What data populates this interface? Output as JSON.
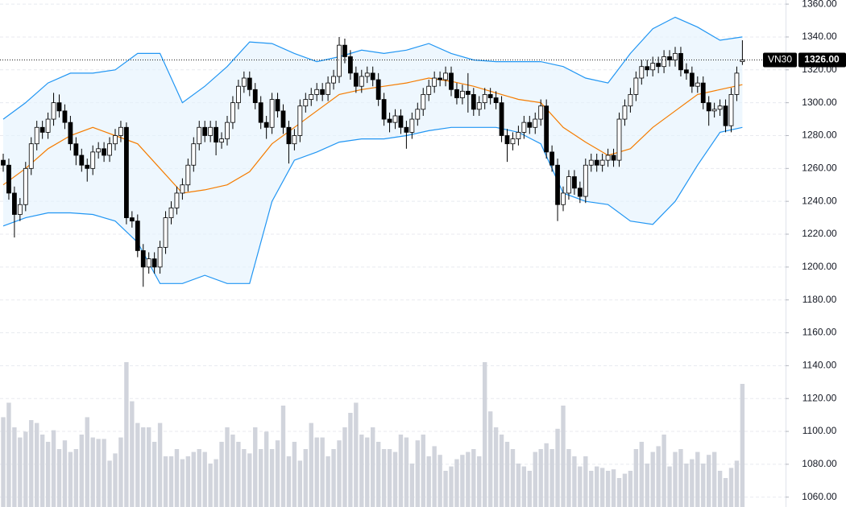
{
  "chart_data": {
    "type": "candlestick",
    "symbol": "VN30",
    "last_price": {
      "value": 1326,
      "label": "1326.00"
    },
    "open": [
      1265,
      1262,
      1245,
      1232,
      1238,
      1260,
      1275,
      1285,
      1282,
      1290,
      1300,
      1295,
      1288,
      1275,
      1268,
      1262,
      1260,
      1270,
      1272,
      1268,
      1275,
      1280,
      1285,
      1230,
      1228,
      1210,
      1200,
      1205,
      1200,
      1212,
      1230,
      1236,
      1245,
      1250,
      1262,
      1275,
      1285,
      1280,
      1285,
      1276,
      1278,
      1288,
      1300,
      1310,
      1315,
      1308,
      1300,
      1288,
      1285,
      1302,
      1295,
      1285,
      1275,
      1280,
      1298,
      1302,
      1305,
      1308,
      1305,
      1312,
      1316,
      1335,
      1328,
      1318,
      1310,
      1316,
      1318,
      1314,
      1302,
      1290,
      1288,
      1292,
      1285,
      1282,
      1290,
      1296,
      1305,
      1310,
      1315,
      1314,
      1318,
      1308,
      1303,
      1307,
      1305,
      1296,
      1300,
      1305,
      1303,
      1300,
      1280,
      1275,
      1278,
      1282,
      1288,
      1285,
      1290,
      1298,
      1270,
      1262,
      1238,
      1245,
      1255,
      1248,
      1243,
      1262,
      1265,
      1262,
      1265,
      1268,
      1265,
      1290,
      1298,
      1305,
      1315,
      1322,
      1320,
      1324,
      1322,
      1328,
      1326,
      1330,
      1320,
      1318,
      1310,
      1312,
      1300,
      1295,
      1296,
      1298,
      1286,
      1305,
      1325
    ],
    "high": [
      1269,
      1266,
      1249,
      1242,
      1264,
      1279,
      1289,
      1289,
      1294,
      1306,
      1305,
      1299,
      1292,
      1279,
      1272,
      1266,
      1274,
      1276,
      1276,
      1279,
      1284,
      1289,
      1288,
      1234,
      1232,
      1214,
      1209,
      1209,
      1216,
      1234,
      1240,
      1249,
      1254,
      1266,
      1279,
      1289,
      1289,
      1289,
      1289,
      1282,
      1292,
      1304,
      1314,
      1319,
      1319,
      1312,
      1304,
      1292,
      1306,
      1306,
      1299,
      1289,
      1284,
      1302,
      1306,
      1309,
      1312,
      1312,
      1316,
      1320,
      1340,
      1339,
      1332,
      1322,
      1320,
      1322,
      1322,
      1318,
      1306,
      1294,
      1296,
      1296,
      1289,
      1294,
      1300,
      1309,
      1314,
      1319,
      1319,
      1322,
      1322,
      1312,
      1311,
      1318,
      1309,
      1304,
      1309,
      1309,
      1307,
      1304,
      1284,
      1282,
      1286,
      1292,
      1292,
      1294,
      1302,
      1302,
      1274,
      1266,
      1249,
      1259,
      1259,
      1252,
      1266,
      1269,
      1269,
      1269,
      1272,
      1272,
      1294,
      1302,
      1309,
      1319,
      1326,
      1326,
      1328,
      1328,
      1332,
      1332,
      1334,
      1334,
      1324,
      1322,
      1316,
      1316,
      1304,
      1300,
      1302,
      1302,
      1309,
      1322,
      1338
    ],
    "low": [
      1258,
      1241,
      1218,
      1228,
      1234,
      1256,
      1271,
      1278,
      1278,
      1286,
      1291,
      1284,
      1271,
      1262,
      1258,
      1252,
      1256,
      1266,
      1264,
      1264,
      1271,
      1276,
      1226,
      1224,
      1206,
      1188,
      1196,
      1196,
      1196,
      1208,
      1226,
      1232,
      1241,
      1246,
      1258,
      1271,
      1276,
      1276,
      1268,
      1272,
      1274,
      1284,
      1296,
      1306,
      1304,
      1296,
      1284,
      1278,
      1281,
      1291,
      1281,
      1263,
      1271,
      1276,
      1294,
      1298,
      1301,
      1301,
      1301,
      1308,
      1312,
      1324,
      1314,
      1306,
      1306,
      1312,
      1310,
      1298,
      1286,
      1282,
      1284,
      1281,
      1272,
      1278,
      1286,
      1292,
      1301,
      1306,
      1310,
      1310,
      1304,
      1299,
      1299,
      1294,
      1292,
      1292,
      1296,
      1299,
      1296,
      1276,
      1264,
      1271,
      1274,
      1278,
      1281,
      1281,
      1286,
      1266,
      1258,
      1228,
      1234,
      1241,
      1244,
      1239,
      1239,
      1258,
      1258,
      1258,
      1261,
      1261,
      1261,
      1286,
      1294,
      1301,
      1311,
      1316,
      1316,
      1318,
      1318,
      1322,
      1322,
      1316,
      1314,
      1306,
      1306,
      1296,
      1286,
      1291,
      1292,
      1282,
      1282,
      1301,
      1323
    ],
    "close": [
      1262,
      1245,
      1232,
      1238,
      1260,
      1275,
      1285,
      1282,
      1290,
      1300,
      1295,
      1288,
      1275,
      1268,
      1262,
      1260,
      1270,
      1272,
      1268,
      1275,
      1280,
      1285,
      1230,
      1228,
      1210,
      1200,
      1205,
      1200,
      1212,
      1230,
      1236,
      1245,
      1250,
      1262,
      1275,
      1285,
      1280,
      1285,
      1276,
      1278,
      1288,
      1300,
      1310,
      1315,
      1308,
      1300,
      1288,
      1285,
      1302,
      1295,
      1285,
      1275,
      1280,
      1298,
      1302,
      1305,
      1308,
      1305,
      1312,
      1316,
      1335,
      1328,
      1318,
      1310,
      1316,
      1318,
      1314,
      1302,
      1290,
      1288,
      1292,
      1285,
      1282,
      1290,
      1296,
      1305,
      1310,
      1315,
      1314,
      1318,
      1308,
      1303,
      1307,
      1305,
      1296,
      1300,
      1305,
      1303,
      1300,
      1280,
      1275,
      1278,
      1282,
      1288,
      1285,
      1290,
      1298,
      1270,
      1262,
      1238,
      1245,
      1255,
      1248,
      1243,
      1262,
      1265,
      1262,
      1265,
      1268,
      1265,
      1290,
      1298,
      1305,
      1315,
      1322,
      1320,
      1324,
      1322,
      1328,
      1326,
      1330,
      1320,
      1318,
      1310,
      1312,
      1300,
      1295,
      1296,
      1298,
      1286,
      1305,
      1318,
      1326
    ],
    "volume": [
      62,
      72,
      55,
      48,
      52,
      60,
      58,
      50,
      45,
      53,
      40,
      46,
      38,
      40,
      50,
      62,
      48,
      47,
      47,
      32,
      37,
      48,
      100,
      73,
      58,
      55,
      55,
      45,
      58,
      35,
      35,
      40,
      33,
      35,
      38,
      40,
      38,
      30,
      33,
      45,
      55,
      50,
      45,
      40,
      37,
      55,
      40,
      52,
      40,
      46,
      70,
      35,
      45,
      32,
      40,
      58,
      48,
      48,
      35,
      40,
      46,
      55,
      65,
      72,
      50,
      48,
      55,
      45,
      40,
      40,
      38,
      50,
      48,
      30,
      46,
      50,
      35,
      42,
      36,
      25,
      28,
      33,
      36,
      38,
      40,
      35,
      100,
      66,
      55,
      50,
      45,
      40,
      30,
      28,
      25,
      38,
      40,
      44,
      40,
      54,
      70,
      40,
      35,
      28,
      35,
      25,
      28,
      27,
      25,
      26,
      20,
      23,
      25,
      40,
      45,
      30,
      38,
      42,
      50,
      28,
      38,
      40,
      30,
      33,
      38,
      30,
      36,
      38,
      25,
      20,
      27,
      32,
      85
    ],
    "vlim": [
      0,
      100
    ],
    "bands": {
      "x": [
        0,
        4,
        8,
        12,
        16,
        20,
        24,
        28,
        32,
        36,
        40,
        44,
        48,
        52,
        56,
        60,
        64,
        68,
        72,
        76,
        80,
        84,
        88,
        92,
        96,
        100,
        104,
        108,
        112,
        116,
        120,
        124,
        128,
        132
      ],
      "upper": [
        1290,
        1300,
        1312,
        1318,
        1318,
        1320,
        1330,
        1330,
        1300,
        1310,
        1322,
        1337,
        1336,
        1330,
        1325,
        1328,
        1332,
        1330,
        1332,
        1336,
        1330,
        1326,
        1325,
        1325,
        1325,
        1322,
        1315,
        1312,
        1330,
        1345,
        1352,
        1346,
        1338,
        1340
      ],
      "middle": [
        1250,
        1260,
        1272,
        1280,
        1285,
        1280,
        1275,
        1260,
        1245,
        1247,
        1250,
        1258,
        1275,
        1285,
        1295,
        1305,
        1308,
        1310,
        1312,
        1315,
        1313,
        1310,
        1306,
        1302,
        1300,
        1285,
        1276,
        1268,
        1272,
        1285,
        1295,
        1305,
        1308,
        1311
      ],
      "lower": [
        1225,
        1230,
        1233,
        1233,
        1232,
        1228,
        1215,
        1190,
        1190,
        1195,
        1190,
        1190,
        1240,
        1265,
        1270,
        1276,
        1278,
        1278,
        1280,
        1283,
        1285,
        1285,
        1285,
        1282,
        1275,
        1245,
        1240,
        1238,
        1228,
        1226,
        1240,
        1262,
        1282,
        1285
      ],
      "band_color": "#2196f3",
      "middle_color": "#f57c00",
      "fill": "#e3f2fd"
    },
    "up_color": "#ffffff",
    "down_color": "#000000",
    "volume_color": "#d1d4dc",
    "ylim": [
      1054,
      1362.5
    ],
    "yticks": [
      {
        "value": 1360,
        "label": "1360.00"
      },
      {
        "value": 1340,
        "label": "1340.00"
      },
      {
        "value": 1320,
        "label": "1320.00"
      },
      {
        "value": 1300,
        "label": "1300.00"
      },
      {
        "value": 1280,
        "label": "1280.00"
      },
      {
        "value": 1260,
        "label": "1260.00"
      },
      {
        "value": 1240,
        "label": "1240.00"
      },
      {
        "value": 1220,
        "label": "1220.00"
      },
      {
        "value": 1200,
        "label": "1200.00"
      },
      {
        "value": 1180,
        "label": "1180.00"
      },
      {
        "value": 1160,
        "label": "1160.00"
      },
      {
        "value": 1140,
        "label": "1140.00"
      },
      {
        "value": 1120,
        "label": "1120.00"
      },
      {
        "value": 1100,
        "label": "1100.00"
      },
      {
        "value": 1080,
        "label": "1080.00"
      },
      {
        "value": 1060,
        "label": "1060.00"
      }
    ],
    "grid": true
  }
}
